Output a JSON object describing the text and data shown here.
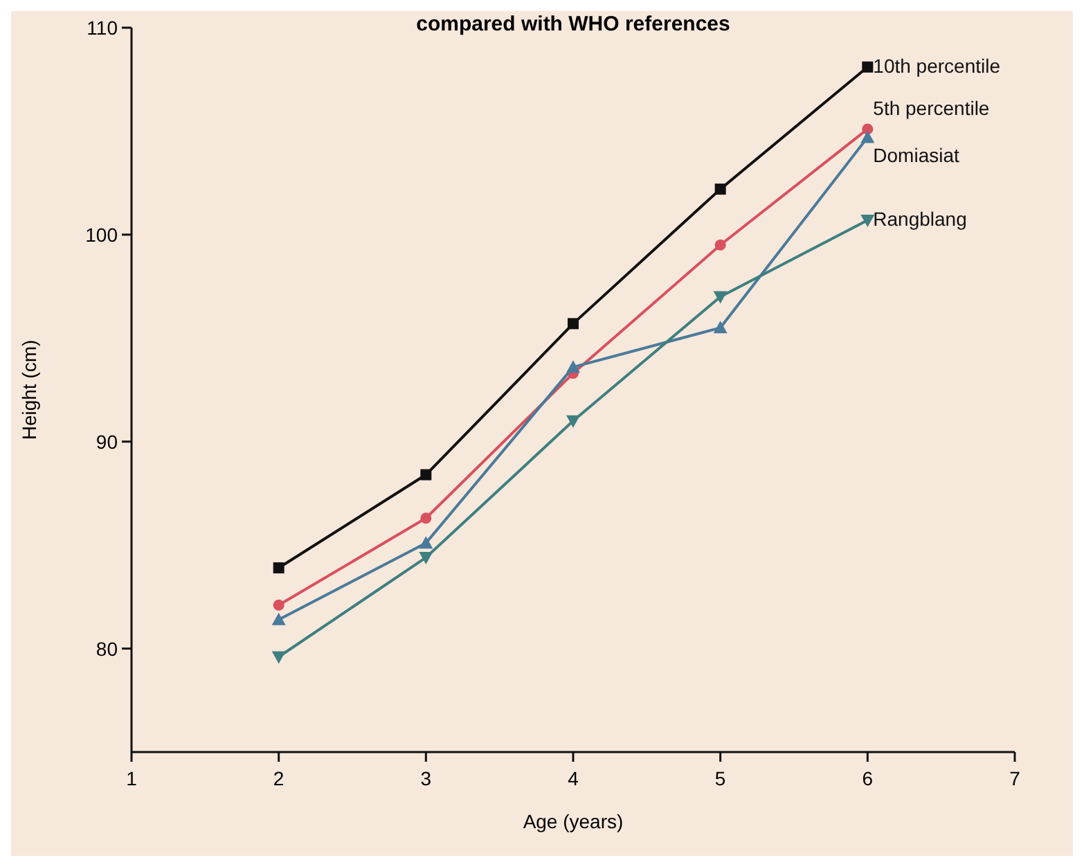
{
  "chart_data": {
    "type": "line",
    "title": "compared with WHO references",
    "xlabel": "Age (years)",
    "ylabel": "Height (cm)",
    "x": [
      2,
      3,
      4,
      5,
      6
    ],
    "xlim": [
      1,
      7
    ],
    "xticks": [
      1,
      2,
      3,
      4,
      5,
      6,
      7
    ],
    "ylim": [
      75,
      110
    ],
    "yticks": [
      80,
      90,
      100,
      110
    ],
    "grid": false,
    "legend": false,
    "line_style": "solid",
    "series": [
      {
        "name": "10th percentile",
        "color": "#111111",
        "marker": "square",
        "values": [
          83.9,
          88.4,
          95.7,
          102.2,
          108.1
        ]
      },
      {
        "name": "5th percentile",
        "color": "#d9505e",
        "marker": "circle",
        "values": [
          82.1,
          86.3,
          93.3,
          99.5,
          105.1
        ]
      },
      {
        "name": "Domiasiat",
        "color": "#4a7a9a",
        "marker": "triangle",
        "values": [
          81.4,
          85.1,
          93.6,
          95.5,
          104.7
        ]
      },
      {
        "name": "Rangblang",
        "color": "#3e7f7f",
        "marker": "triangle-down",
        "values": [
          79.6,
          84.4,
          91.0,
          97.0,
          100.7
        ]
      }
    ]
  }
}
